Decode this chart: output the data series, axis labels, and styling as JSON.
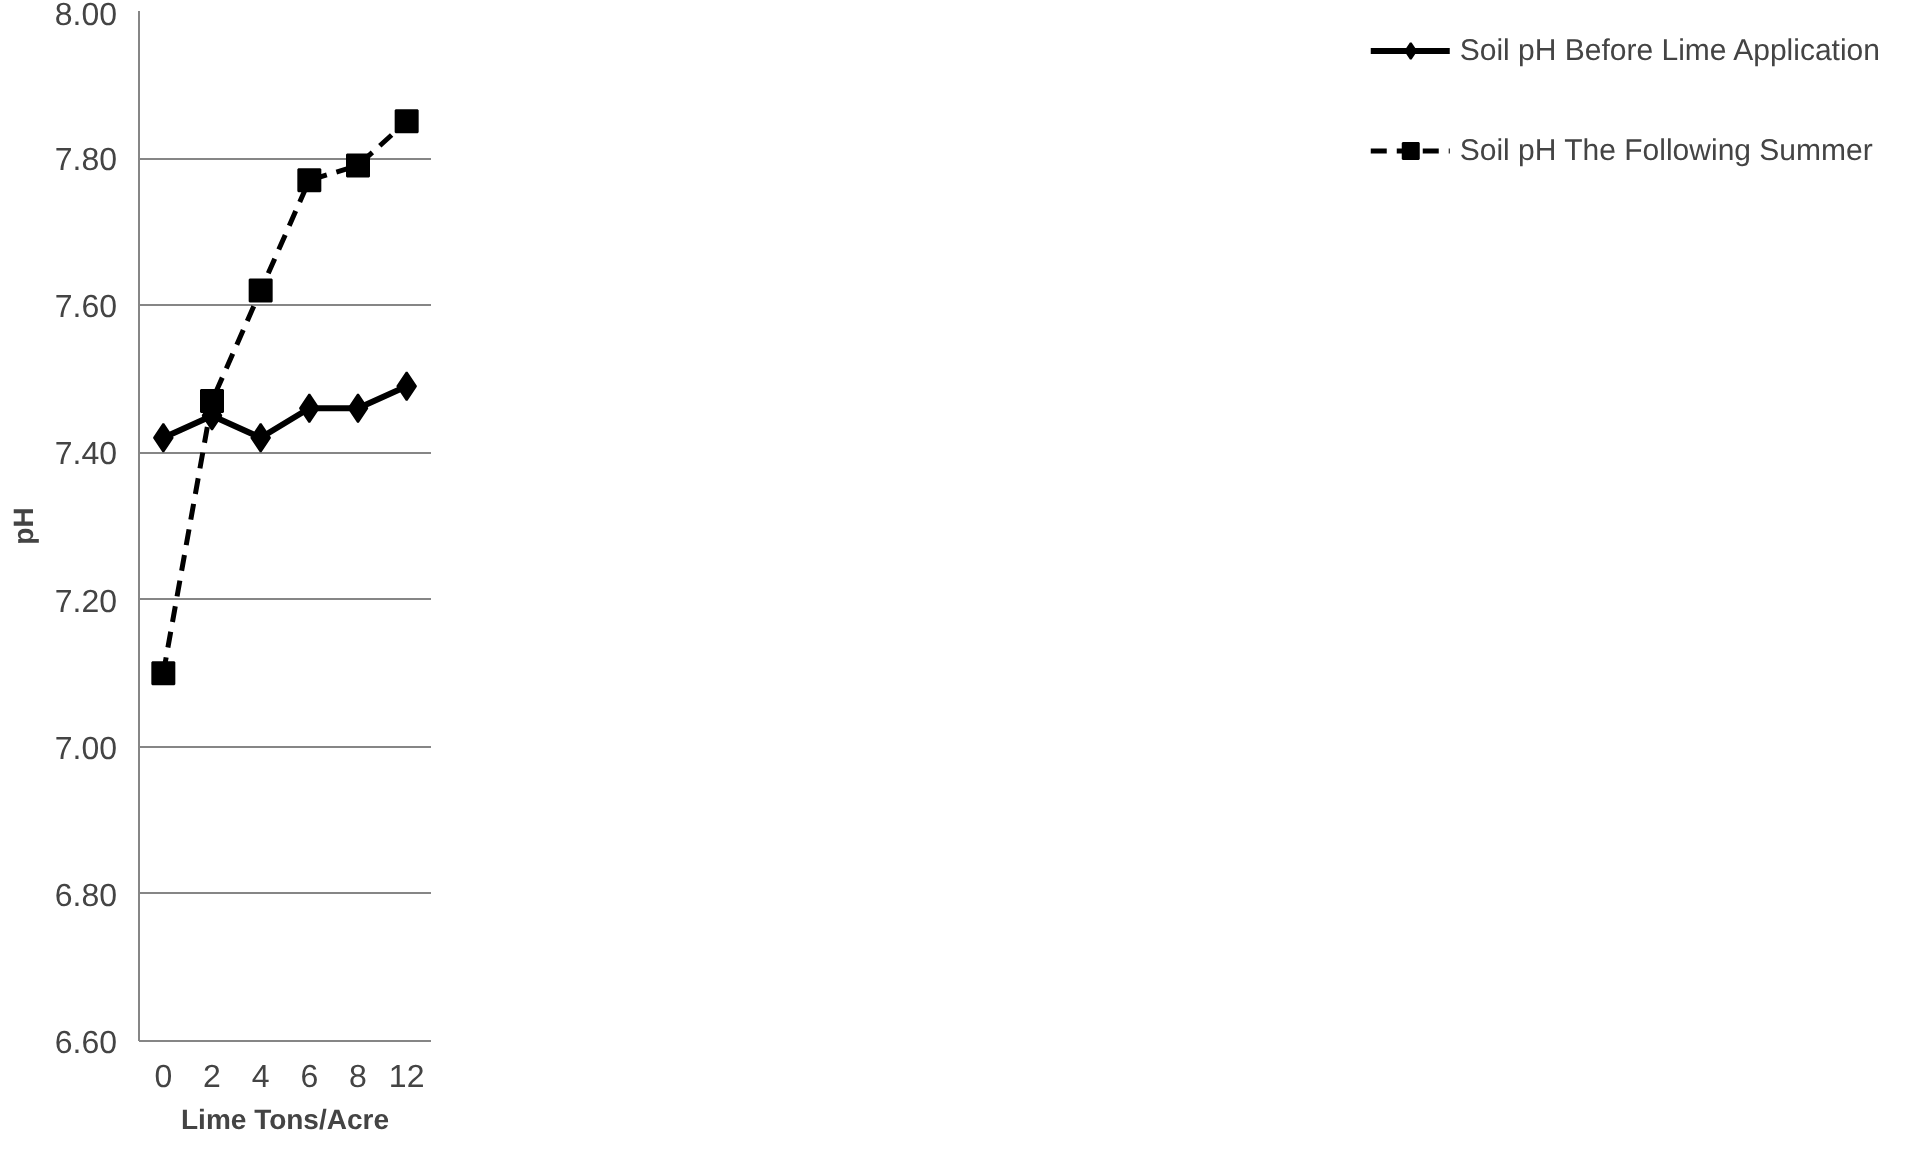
{
  "chart_data": {
    "type": "line",
    "xlabel": "Lime Tons/Acre",
    "ylabel": "pH",
    "categories": [
      "0",
      "2",
      "4",
      "6",
      "8",
      "12"
    ],
    "series": [
      {
        "name": "Soil pH Before Lime Application",
        "color": "#000000",
        "marker": "diamond",
        "line_style": "solid",
        "values": [
          7.42,
          7.45,
          7.42,
          7.46,
          7.46,
          7.49
        ]
      },
      {
        "name": "Soil pH The Following Summer",
        "color": "#000000",
        "marker": "square",
        "line_style": "dashed",
        "values": [
          7.1,
          7.47,
          7.62,
          7.77,
          7.79,
          7.85
        ]
      }
    ],
    "ylim": [
      6.6,
      8.0
    ],
    "yticks": [
      {
        "value": 6.6,
        "label": "6.60"
      },
      {
        "value": 6.8,
        "label": "6.80"
      },
      {
        "value": 7.0,
        "label": "7.00"
      },
      {
        "value": 7.2,
        "label": "7.20"
      },
      {
        "value": 7.4,
        "label": "7.40"
      },
      {
        "value": 7.6,
        "label": "7.60"
      },
      {
        "value": 7.8,
        "label": "7.80"
      },
      {
        "value": 8.0,
        "label": "8.00"
      }
    ],
    "grid": "y",
    "legend": "right"
  }
}
